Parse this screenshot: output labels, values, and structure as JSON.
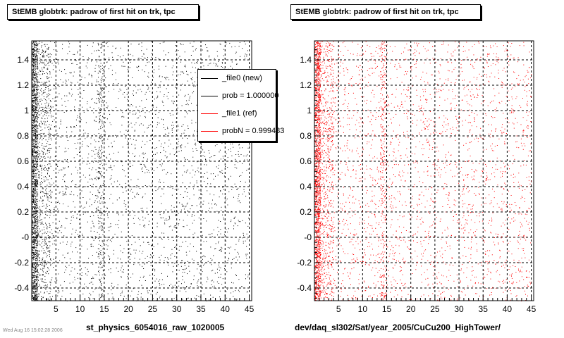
{
  "chart_data": [
    {
      "type": "scatter",
      "title": "StEMB globtrk: padrow of first hit on trk, tpc",
      "xlabel": "st_physics_6054016_raw_1020005",
      "ylabel": "",
      "xlim": [
        0,
        45.5
      ],
      "ylim": [
        -0.5,
        1.55
      ],
      "xticks": [
        5,
        10,
        15,
        20,
        25,
        30,
        35,
        40,
        45
      ],
      "yticks": [
        -0.4,
        -0.2,
        0,
        0.2,
        0.4,
        0.6,
        0.8,
        1,
        1.2,
        1.4
      ],
      "ytick_labels": [
        "-0.4",
        "-0.2",
        "-0",
        "0.2",
        "0.4",
        "0.6",
        "0.8",
        "1",
        "1.2",
        "1.4"
      ],
      "grid": true,
      "series": [
        {
          "name": "_file0 (new)",
          "color": "#000000"
        }
      ],
      "bands": [
        {
          "x_range": [
            0,
            1.2
          ],
          "density": "very high"
        },
        {
          "x_range": [
            1.2,
            4
          ],
          "density": "medium"
        },
        {
          "x_range": [
            13.6,
            14.8
          ],
          "density": "high"
        },
        {
          "x_range": [
            4,
            45
          ],
          "density": "low"
        }
      ],
      "legend": {
        "position": "top-right",
        "entries": [
          "_file0 (new)",
          "prob = 1.000000",
          "_file1 (ref)",
          "probN = 0.999483"
        ]
      }
    },
    {
      "type": "scatter",
      "title": "StEMB globtrk: padrow of first hit on trk, tpc",
      "xlabel": "dev/daq_sl302/Sat/year_2005/CuCu200_HighTower/",
      "ylabel": "",
      "xlim": [
        0,
        45.5
      ],
      "ylim": [
        -0.5,
        1.55
      ],
      "xticks": [
        5,
        10,
        15,
        20,
        25,
        30,
        35,
        40,
        45
      ],
      "yticks": [
        -0.4,
        -0.2,
        0,
        0.2,
        0.4,
        0.6,
        0.8,
        1,
        1.2,
        1.4
      ],
      "ytick_labels": [
        "-0.4",
        "-0.2",
        "-0",
        "0.2",
        "0.4",
        "0.6",
        "0.8",
        "1",
        "1.2",
        "1.4"
      ],
      "grid": true,
      "series": [
        {
          "name": "_file1 (ref)",
          "color": "#ff0000"
        }
      ],
      "bands": [
        {
          "x_range": [
            0,
            1.2
          ],
          "density": "very high"
        },
        {
          "x_range": [
            1.2,
            4
          ],
          "density": "medium"
        },
        {
          "x_range": [
            13.6,
            14.8
          ],
          "density": "high"
        },
        {
          "x_range": [
            4,
            45
          ],
          "density": "low"
        }
      ]
    }
  ],
  "footer": "Wed Aug 16 15:02:28 2006"
}
